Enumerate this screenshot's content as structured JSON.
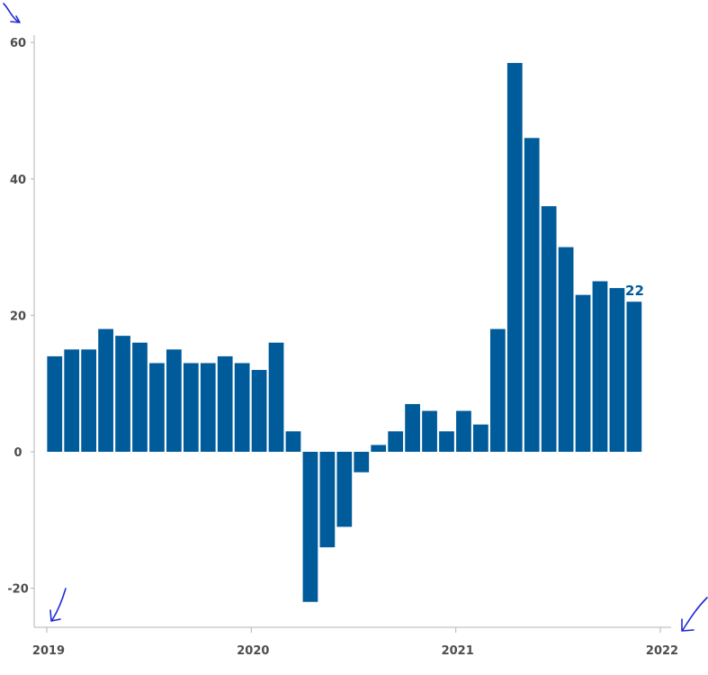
{
  "chart_data": {
    "type": "bar",
    "title": "",
    "xlabel": "",
    "ylabel": "",
    "ylim": [
      -25,
      61
    ],
    "yticks": [
      60,
      40,
      20,
      0,
      -20
    ],
    "ytick_labels": [
      "60",
      "40",
      "20",
      "0",
      "-20"
    ],
    "xlim": [
      0,
      36
    ],
    "xticks": [
      0,
      12,
      24,
      36
    ],
    "xtick_labels": [
      "2019",
      "2020",
      "2021",
      "2022"
    ],
    "grid": false,
    "series": [
      {
        "values": [
          14,
          15,
          15,
          18,
          17,
          16,
          13,
          15,
          13,
          13,
          14,
          13,
          12,
          16,
          3,
          -22,
          -14,
          -11,
          -3,
          1,
          3,
          7,
          6,
          3,
          6,
          4,
          18,
          57,
          46,
          36,
          30,
          23,
          25,
          24,
          22
        ]
      }
    ],
    "last_value_label": "22",
    "colors": {
      "bar": "#005b9a",
      "axis": "#b3b3b3",
      "tick_text": "#4d4d4d",
      "annotation": "#1f2bd6"
    }
  }
}
